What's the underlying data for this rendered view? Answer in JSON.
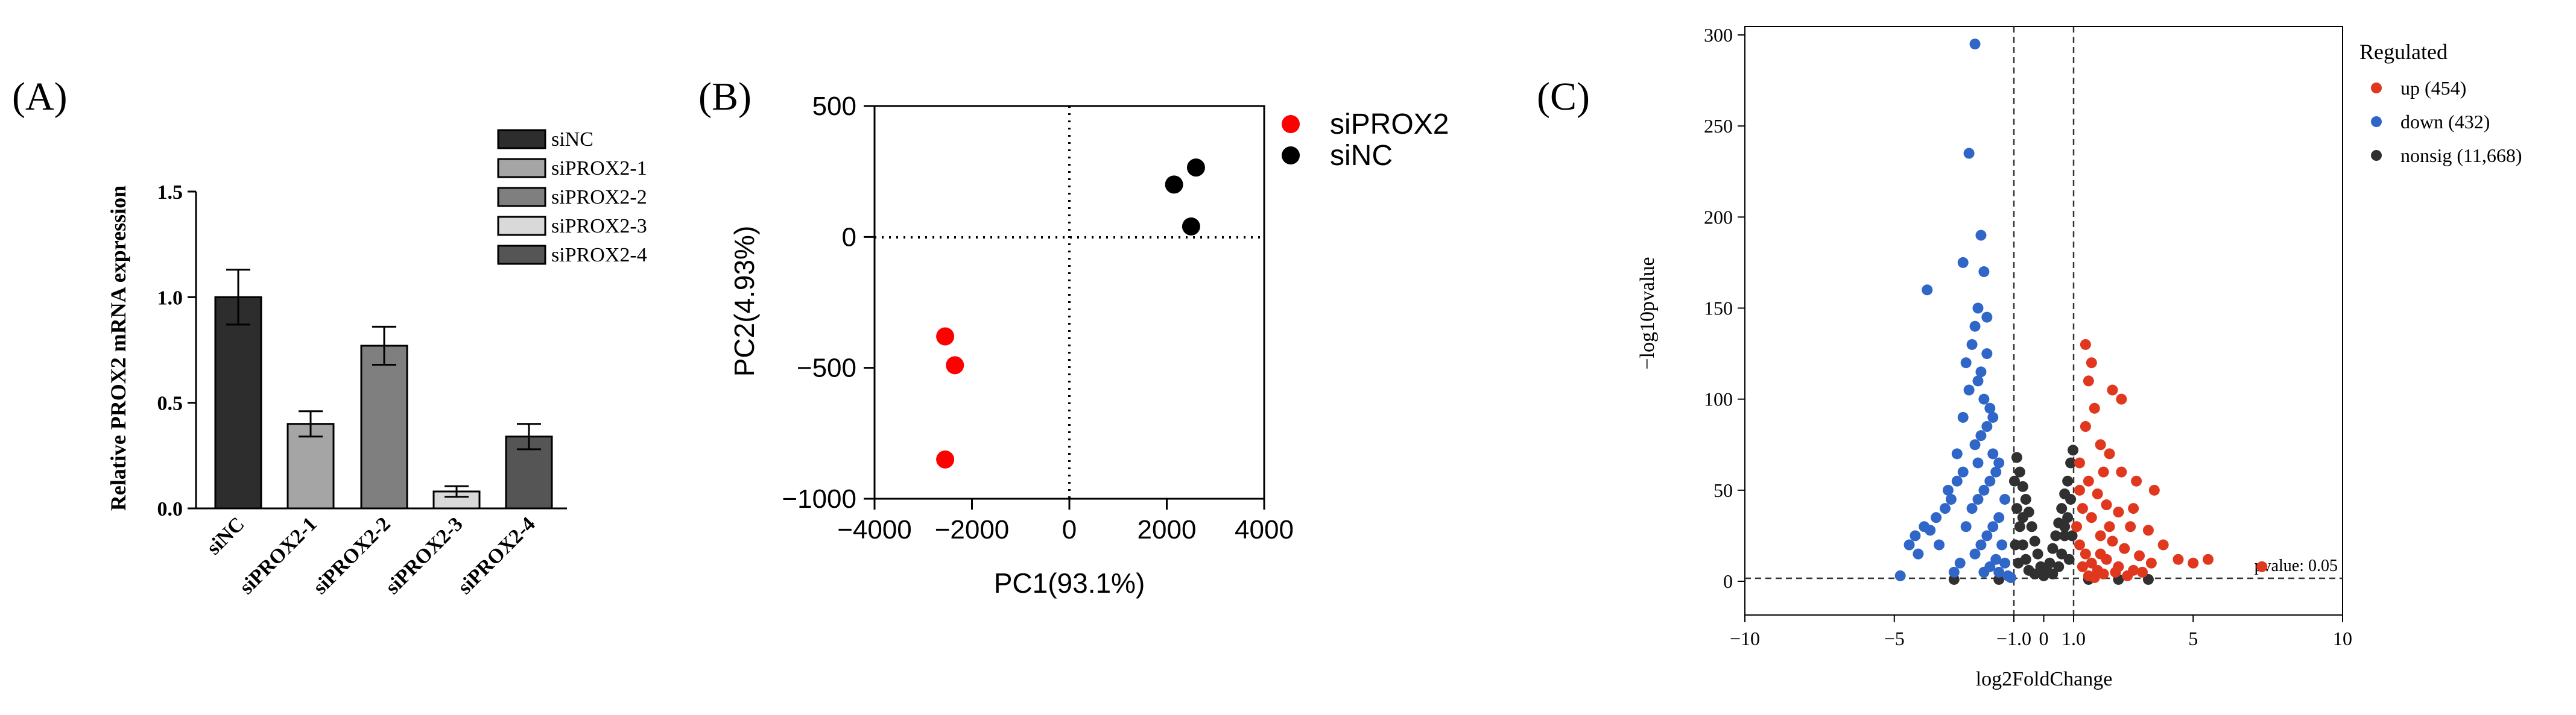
{
  "colors": {
    "siNC": "#2d2d2d",
    "siPROX2-1": "#a5a5a5",
    "siPROX2-2": "#7f7f7f",
    "siPROX2-3": "#d9d9d9",
    "siPROX2-4": "#555555",
    "pca_red": "#ff0000",
    "pca_black": "#000000",
    "up": "#e0371f",
    "down": "#2f66c8",
    "nonsig": "#303030"
  },
  "chart_data": [
    {
      "id": "A",
      "panel_label": "(A)",
      "type": "bar",
      "ylabel": "Relative PROX2 mRNA expression",
      "xlabel": "",
      "ylim": [
        0,
        1.5
      ],
      "yticks": [
        "0.0",
        "0.5",
        "1.0",
        "1.5"
      ],
      "categories": [
        "siNC",
        "siPROX2-1",
        "siPROX2-2",
        "siPROX2-3",
        "siPROX2-4"
      ],
      "values": [
        1.0,
        0.4,
        0.77,
        0.08,
        0.34
      ],
      "errors": [
        0.13,
        0.06,
        0.09,
        0.025,
        0.06
      ],
      "legend": [
        "siNC",
        "siPROX2-1",
        "siPROX2-2",
        "siPROX2-3",
        "siPROX2-4"
      ],
      "legend_position": "top-right"
    },
    {
      "id": "B",
      "panel_label": "(B)",
      "type": "scatter",
      "xlabel": "PC1(93.1%)",
      "ylabel": "PC2(4.93%)",
      "xlim": [
        -4000,
        4000
      ],
      "ylim": [
        -1000,
        500
      ],
      "xticks": [
        "−4000",
        "−2000",
        "0",
        "2000",
        "4000"
      ],
      "yticks": [
        "500",
        "0",
        "−500",
        "−1000"
      ],
      "series": [
        {
          "name": "siPROX2",
          "points": [
            [
              -2550,
              -380
            ],
            [
              -2350,
              -490
            ],
            [
              -2550,
              -850
            ]
          ]
        },
        {
          "name": "siNC",
          "points": [
            [
              2150,
              200
            ],
            [
              2600,
              265
            ],
            [
              2500,
              40
            ]
          ]
        }
      ],
      "legend_position": "right"
    },
    {
      "id": "C",
      "panel_label": "(C)",
      "type": "scatter",
      "title": "",
      "xlabel": "log2FoldChange",
      "ylabel": "−log10pvalue",
      "xlim": [
        -10,
        10
      ],
      "ylim": [
        0,
        300
      ],
      "xticks": [
        "−10",
        "−5",
        "−1.0",
        "0",
        "1.0",
        "5",
        "10"
      ],
      "yticks": [
        "0",
        "50",
        "100",
        "150",
        "200",
        "250",
        "300"
      ],
      "thresholds": {
        "fc": [
          -1.0,
          1.0
        ],
        "pvalue_label": "pvalue: 0.05",
        "neg_log10_p": 1.3
      },
      "legend_title": "Regulated",
      "legend": [
        "up (454)",
        "down (432)",
        "nonsig (11,668)"
      ],
      "legend_position": "right",
      "series": [
        {
          "name": "up",
          "points": [
            [
              1.4,
              130
            ],
            [
              1.6,
              120
            ],
            [
              2.3,
              105
            ],
            [
              2.6,
              100
            ],
            [
              1.5,
              110
            ],
            [
              1.7,
              95
            ],
            [
              1.9,
              75
            ],
            [
              2.2,
              70
            ],
            [
              2.6,
              60
            ],
            [
              3.1,
              55
            ],
            [
              1.2,
              65
            ],
            [
              1.5,
              55
            ],
            [
              1.8,
              48
            ],
            [
              2.1,
              42
            ],
            [
              2.5,
              38
            ],
            [
              2.9,
              30
            ],
            [
              3.5,
              28
            ],
            [
              3.7,
              50
            ],
            [
              1.3,
              40
            ],
            [
              1.6,
              35
            ],
            [
              1.9,
              25
            ],
            [
              2.3,
              22
            ],
            [
              2.7,
              18
            ],
            [
              3.2,
              14
            ],
            [
              3.6,
              10
            ],
            [
              4.5,
              12
            ],
            [
              5.0,
              10
            ],
            [
              5.5,
              12
            ],
            [
              1.1,
              30
            ],
            [
              1.2,
              20
            ],
            [
              1.4,
              15
            ],
            [
              1.6,
              10
            ],
            [
              1.8,
              6
            ],
            [
              2.0,
              4
            ],
            [
              2.4,
              5
            ],
            [
              2.8,
              3
            ],
            [
              1.3,
              8
            ],
            [
              1.5,
              3
            ],
            [
              1.7,
              2
            ],
            [
              2.1,
              12
            ],
            [
              2.5,
              8
            ],
            [
              3.0,
              6
            ],
            [
              3.3,
              5
            ],
            [
              1.9,
              15
            ],
            [
              2.2,
              30
            ],
            [
              1.4,
              85
            ],
            [
              1.2,
              50
            ],
            [
              4.0,
              20
            ],
            [
              3.0,
              40
            ],
            [
              2.0,
              60
            ],
            [
              7.3,
              8
            ]
          ]
        },
        {
          "name": "down",
          "points": [
            [
              -4.8,
              3
            ],
            [
              -4.5,
              20
            ],
            [
              -4.3,
              25
            ],
            [
              -4.0,
              30
            ],
            [
              -3.8,
              28
            ],
            [
              -3.6,
              35
            ],
            [
              -3.3,
              40
            ],
            [
              -3.1,
              45
            ],
            [
              -2.9,
              55
            ],
            [
              -2.7,
              60
            ],
            [
              -3.9,
              160
            ],
            [
              -2.5,
              235
            ],
            [
              -2.7,
              175
            ],
            [
              -2.1,
              190
            ],
            [
              -2.3,
              295
            ],
            [
              -2.2,
              150
            ],
            [
              -2.4,
              130
            ],
            [
              -2.6,
              120
            ],
            [
              -2.2,
              110
            ],
            [
              -2.0,
              100
            ],
            [
              -1.8,
              95
            ],
            [
              -1.9,
              85
            ],
            [
              -2.1,
              80
            ],
            [
              -2.3,
              75
            ],
            [
              -1.7,
              70
            ],
            [
              -1.6,
              60
            ],
            [
              -1.8,
              55
            ],
            [
              -2.0,
              50
            ],
            [
              -2.2,
              45
            ],
            [
              -2.4,
              40
            ],
            [
              -1.5,
              35
            ],
            [
              -1.7,
              30
            ],
            [
              -1.9,
              25
            ],
            [
              -2.1,
              20
            ],
            [
              -2.3,
              15
            ],
            [
              -1.4,
              20
            ],
            [
              -1.6,
              12
            ],
            [
              -1.8,
              8
            ],
            [
              -2.0,
              5
            ],
            [
              -1.3,
              10
            ],
            [
              -1.5,
              5
            ],
            [
              -1.2,
              3
            ],
            [
              -1.1,
              2
            ],
            [
              -2.5,
              105
            ],
            [
              -2.3,
              140
            ],
            [
              -1.9,
              125
            ],
            [
              -2.1,
              115
            ],
            [
              -2.7,
              90
            ],
            [
              -2.9,
              70
            ],
            [
              -3.2,
              50
            ],
            [
              -3.5,
              20
            ],
            [
              -1.3,
              45
            ],
            [
              -1.5,
              65
            ],
            [
              -1.7,
              90
            ],
            [
              -1.9,
              145
            ],
            [
              -2.0,
              170
            ],
            [
              -2.2,
              65
            ],
            [
              -2.6,
              30
            ],
            [
              -2.8,
              10
            ],
            [
              -3.0,
              5
            ],
            [
              -4.2,
              15
            ]
          ]
        },
        {
          "name": "nonsig",
          "points": [
            [
              -0.9,
              68
            ],
            [
              -0.8,
              60
            ],
            [
              -0.7,
              52
            ],
            [
              -0.6,
              45
            ],
            [
              -0.5,
              38
            ],
            [
              -0.4,
              30
            ],
            [
              -0.3,
              22
            ],
            [
              -0.2,
              15
            ],
            [
              -0.1,
              8
            ],
            [
              0.0,
              3
            ],
            [
              0.1,
              6
            ],
            [
              0.2,
              10
            ],
            [
              0.3,
              18
            ],
            [
              0.4,
              25
            ],
            [
              0.5,
              32
            ],
            [
              0.6,
              40
            ],
            [
              0.7,
              48
            ],
            [
              0.8,
              55
            ],
            [
              0.9,
              65
            ],
            [
              -0.9,
              40
            ],
            [
              -0.8,
              30
            ],
            [
              -0.7,
              20
            ],
            [
              -0.6,
              12
            ],
            [
              -0.5,
              6
            ],
            [
              0.5,
              8
            ],
            [
              0.6,
              15
            ],
            [
              0.7,
              25
            ],
            [
              0.8,
              35
            ],
            [
              0.9,
              45
            ],
            [
              -0.95,
              20
            ],
            [
              -0.85,
              10
            ],
            [
              0.85,
              12
            ],
            [
              0.95,
              25
            ],
            [
              0.98,
              72
            ],
            [
              -0.98,
              55
            ],
            [
              -0.3,
              4
            ],
            [
              0.3,
              4
            ],
            [
              -0.7,
              35
            ],
            [
              0.7,
              30
            ],
            [
              1.5,
              1
            ],
            [
              2.5,
              1
            ],
            [
              3.5,
              1
            ],
            [
              -1.5,
              1
            ],
            [
              -3.0,
              1
            ]
          ]
        }
      ]
    }
  ]
}
